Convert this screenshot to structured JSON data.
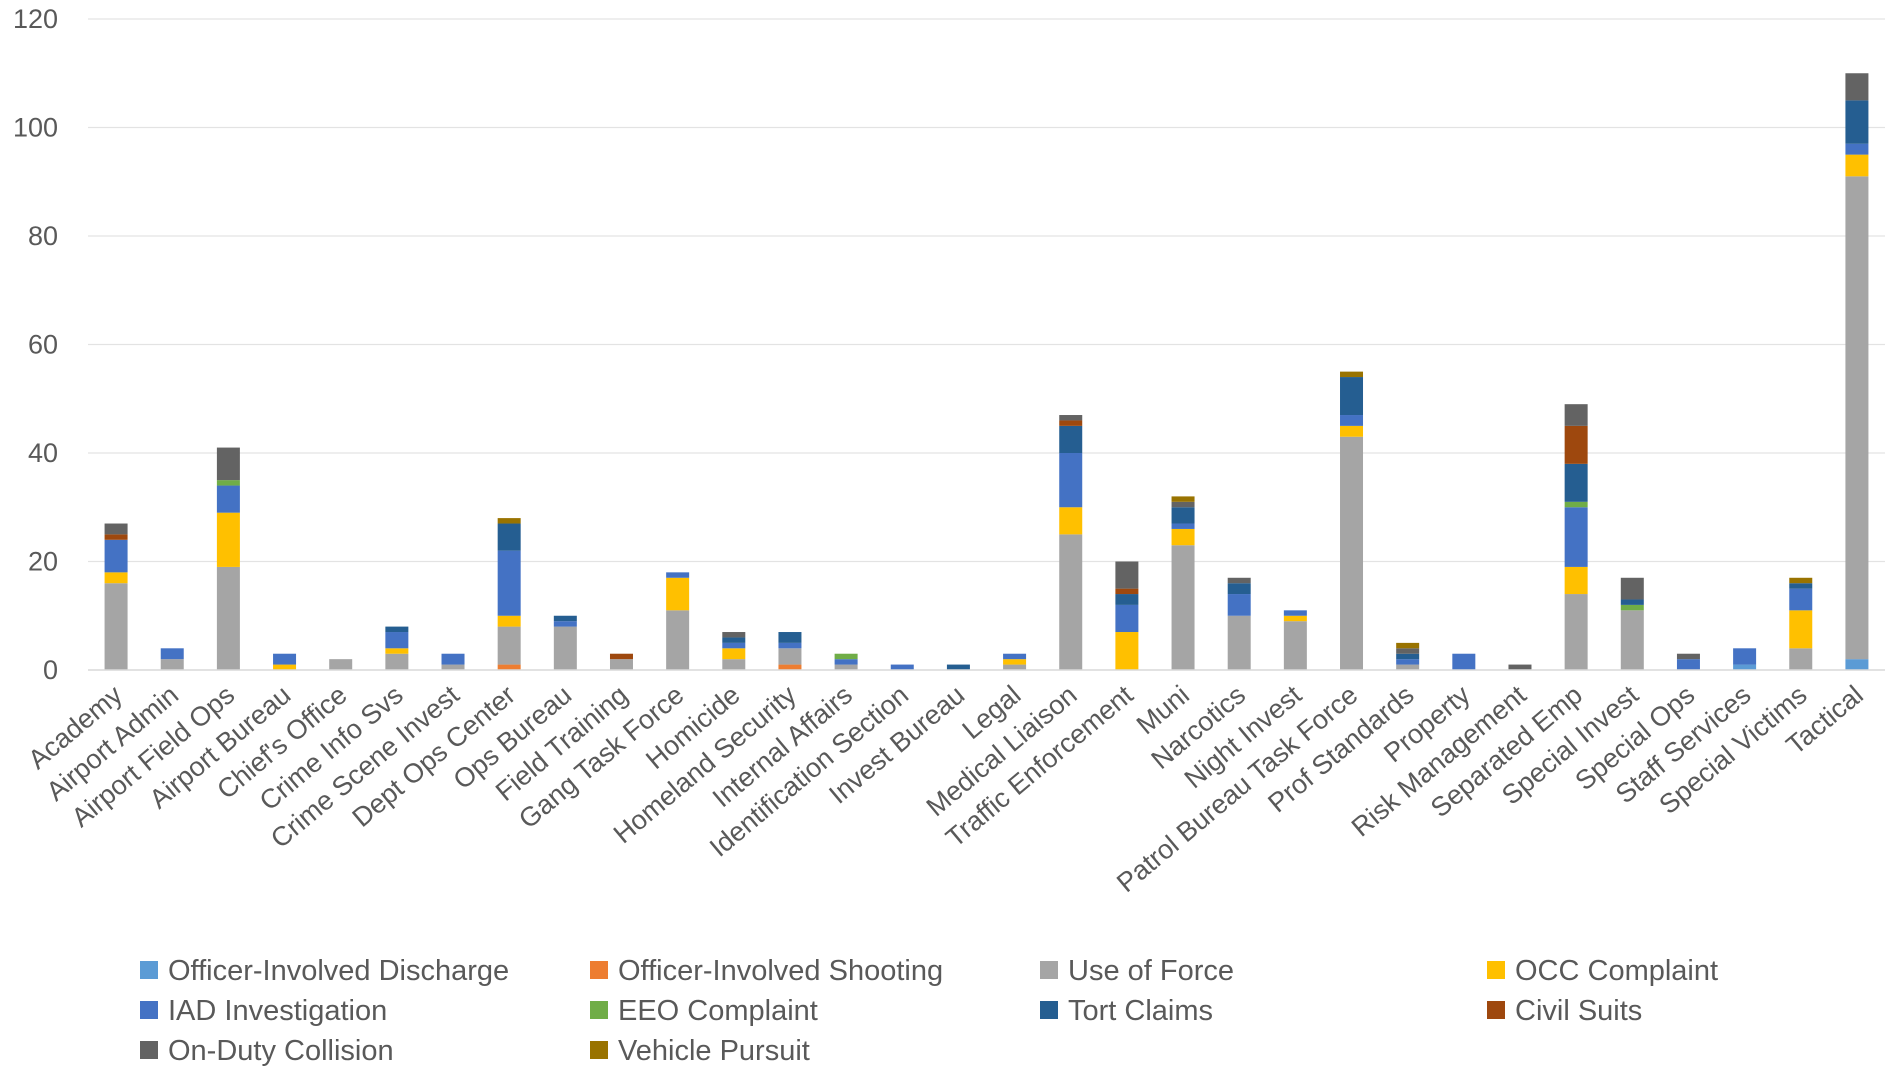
{
  "chart_data": {
    "type": "bar",
    "stacked": true,
    "title": "",
    "xlabel": "",
    "ylabel": "",
    "ylim": [
      0,
      120
    ],
    "y_ticks": [
      0,
      20,
      40,
      60,
      80,
      100,
      120
    ],
    "grid": true,
    "legend_position": "bottom",
    "categories": [
      "Academy",
      "Airport Admin",
      "Airport Field Ops",
      "Airport Bureau",
      "Chief's Office",
      "Crime Info Svs",
      "Crime Scene Invest",
      "Dept Ops Center",
      "Ops Bureau",
      "Field Training",
      "Gang Task Force",
      "Homicide",
      "Homeland Security",
      "Internal Affairs",
      "Identification Section",
      "Invest Bureau",
      "Legal",
      "Medical Liaison",
      "Traffic Enforcement",
      "Muni",
      "Narcotics",
      "Night Invest",
      "Patrol Bureau Task Force",
      "Prof Standards",
      "Property",
      "Risk Management",
      "Separated Emp",
      "Special Invest",
      "Special Ops",
      "Staff Services",
      "Special Victims",
      "Tactical"
    ],
    "series": [
      {
        "name": "Officer-Involved Discharge",
        "color": "#5b9bd5",
        "values": [
          0,
          0,
          0,
          0,
          0,
          0,
          0,
          0,
          0,
          0,
          0,
          0,
          0,
          0,
          0,
          0,
          0,
          0,
          0,
          0,
          0,
          0,
          0,
          0,
          0,
          0,
          0,
          0,
          0,
          1,
          0,
          2
        ]
      },
      {
        "name": "Officer-Involved Shooting",
        "color": "#ed7d31",
        "values": [
          0,
          0,
          0,
          0,
          0,
          0,
          0,
          1,
          0,
          0,
          0,
          0,
          1,
          0,
          0,
          0,
          0,
          0,
          0,
          0,
          0,
          0,
          0,
          0,
          0,
          0,
          0,
          0,
          0,
          0,
          0,
          0
        ]
      },
      {
        "name": "Use of Force",
        "color": "#a5a5a5",
        "values": [
          16,
          2,
          19,
          0,
          2,
          3,
          1,
          7,
          8,
          2,
          11,
          2,
          3,
          1,
          0,
          0,
          1,
          25,
          0,
          23,
          10,
          9,
          43,
          1,
          0,
          0,
          14,
          11,
          0,
          0,
          4,
          89
        ]
      },
      {
        "name": "OCC Complaint",
        "color": "#ffc000",
        "values": [
          2,
          0,
          10,
          1,
          0,
          1,
          0,
          2,
          0,
          0,
          6,
          2,
          0,
          0,
          0,
          0,
          1,
          5,
          7,
          3,
          0,
          1,
          2,
          0,
          0,
          0,
          5,
          0,
          0,
          0,
          7,
          4
        ]
      },
      {
        "name": "IAD Investigation",
        "color": "#4472c4",
        "values": [
          6,
          2,
          5,
          2,
          0,
          3,
          2,
          12,
          1,
          0,
          1,
          1,
          1,
          1,
          1,
          0,
          1,
          10,
          5,
          1,
          4,
          1,
          2,
          1,
          3,
          0,
          11,
          0,
          2,
          3,
          4,
          2
        ]
      },
      {
        "name": "EEO Complaint",
        "color": "#70ad47",
        "values": [
          0,
          0,
          1,
          0,
          0,
          0,
          0,
          0,
          0,
          0,
          0,
          0,
          0,
          1,
          0,
          0,
          0,
          0,
          0,
          0,
          0,
          0,
          0,
          0,
          0,
          0,
          1,
          1,
          0,
          0,
          0,
          0
        ]
      },
      {
        "name": "Tort Claims",
        "color": "#255e91",
        "values": [
          0,
          0,
          0,
          0,
          0,
          1,
          0,
          5,
          1,
          0,
          0,
          1,
          2,
          0,
          0,
          1,
          0,
          5,
          2,
          3,
          2,
          0,
          7,
          1,
          0,
          0,
          7,
          1,
          0,
          0,
          1,
          8
        ]
      },
      {
        "name": "Civil Suits",
        "color": "#9e480e",
        "values": [
          1,
          0,
          0,
          0,
          0,
          0,
          0,
          0,
          0,
          1,
          0,
          0,
          0,
          0,
          0,
          0,
          0,
          1,
          1,
          0,
          0,
          0,
          0,
          0,
          0,
          0,
          7,
          0,
          0,
          0,
          0,
          0
        ]
      },
      {
        "name": "On-Duty Collision",
        "color": "#636363",
        "values": [
          2,
          0,
          6,
          0,
          0,
          0,
          0,
          0,
          0,
          0,
          0,
          1,
          0,
          0,
          0,
          0,
          0,
          1,
          5,
          1,
          1,
          0,
          0,
          1,
          0,
          1,
          4,
          4,
          1,
          0,
          0,
          5
        ]
      },
      {
        "name": "Vehicle Pursuit",
        "color": "#997300",
        "values": [
          0,
          0,
          0,
          0,
          0,
          0,
          0,
          1,
          0,
          0,
          0,
          0,
          0,
          0,
          0,
          0,
          0,
          0,
          0,
          1,
          0,
          0,
          1,
          1,
          0,
          0,
          0,
          0,
          0,
          0,
          1,
          0
        ]
      }
    ]
  }
}
